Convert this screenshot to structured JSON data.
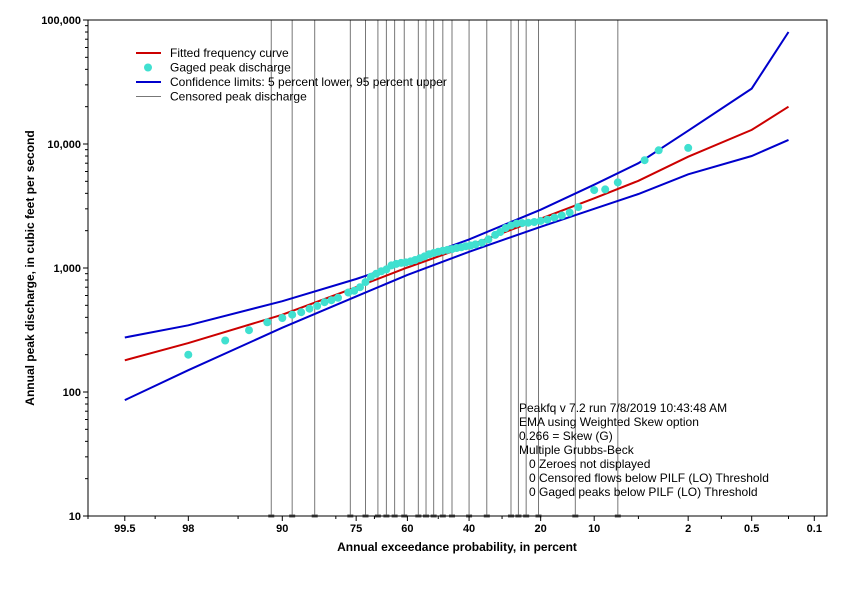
{
  "chart_data": {
    "type": "scatter",
    "title": "",
    "xlabel": "Annual exceedance probability, in percent",
    "ylabel": "Annual peak discharge, in cubic feet per second",
    "x_scale": "normal-probability",
    "y_scale": "log",
    "xlim": [
      99.8,
      0.07
    ],
    "ylim": [
      10,
      100000
    ],
    "x_ticks": [
      {
        "value": 99.5,
        "label": "99.5"
      },
      {
        "value": 98,
        "label": "98"
      },
      {
        "value": 90,
        "label": "90"
      },
      {
        "value": 75,
        "label": "75"
      },
      {
        "value": 60,
        "label": "60"
      },
      {
        "value": 40,
        "label": "40"
      },
      {
        "value": 20,
        "label": "20"
      },
      {
        "value": 10,
        "label": "10"
      },
      {
        "value": 2,
        "label": "2"
      },
      {
        "value": 0.5,
        "label": "0.5"
      },
      {
        "value": 0.1,
        "label": "0.1"
      }
    ],
    "x_minor_ticks": [
      99.8,
      99,
      95,
      80,
      70,
      50,
      30,
      5,
      1,
      0.2
    ],
    "y_ticks": [
      {
        "value": 10,
        "label": "10"
      },
      {
        "value": 100,
        "label": "100"
      },
      {
        "value": 1000,
        "label": "1,000"
      },
      {
        "value": 10000,
        "label": "10,000"
      },
      {
        "value": 100000,
        "label": "100,000"
      }
    ],
    "grid": false,
    "legend_position": "top-left",
    "series": [
      {
        "name": "Fitted frequency curve",
        "kind": "line",
        "color": "#cc0000",
        "points": [
          [
            99.5,
            180
          ],
          [
            98,
            248
          ],
          [
            90,
            420
          ],
          [
            75,
            700
          ],
          [
            60,
            1010
          ],
          [
            40,
            1520
          ],
          [
            20,
            2500
          ],
          [
            10,
            3650
          ],
          [
            5,
            5050
          ],
          [
            2,
            7900
          ],
          [
            0.5,
            13000
          ],
          [
            0.2,
            20000
          ]
        ]
      },
      {
        "name": "Confidence limits: 5 percent lower, 95 percent upper",
        "kind": "line",
        "color": "#0000cc",
        "points": [
          [
            99.5,
            275
          ],
          [
            98,
            345
          ],
          [
            90,
            540
          ],
          [
            75,
            815
          ],
          [
            60,
            1120
          ],
          [
            40,
            1700
          ],
          [
            20,
            2950
          ],
          [
            10,
            4700
          ],
          [
            5,
            7000
          ],
          [
            2,
            12800
          ],
          [
            0.5,
            28000
          ],
          [
            0.2,
            80000
          ]
        ]
      },
      {
        "name": "Confidence limits (lower)",
        "kind": "line",
        "color": "#0000cc",
        "points": [
          [
            99.5,
            86
          ],
          [
            98,
            150
          ],
          [
            90,
            330
          ],
          [
            75,
            590
          ],
          [
            60,
            880
          ],
          [
            40,
            1350
          ],
          [
            20,
            2150
          ],
          [
            10,
            3000
          ],
          [
            5,
            3950
          ],
          [
            2,
            5700
          ],
          [
            0.5,
            8000
          ],
          [
            0.2,
            10800
          ]
        ]
      },
      {
        "name": "Gaged peak discharge",
        "kind": "points",
        "color": "#40e0d0",
        "points": [
          [
            98.0,
            200
          ],
          [
            96.0,
            260
          ],
          [
            94.0,
            315
          ],
          [
            92.0,
            365
          ],
          [
            90.0,
            395
          ],
          [
            88.5,
            420
          ],
          [
            87.0,
            440
          ],
          [
            85.5,
            470
          ],
          [
            84.0,
            495
          ],
          [
            82.5,
            530
          ],
          [
            81.0,
            550
          ],
          [
            79.5,
            575
          ],
          [
            77.0,
            635
          ],
          [
            75.5,
            655
          ],
          [
            74.0,
            700
          ],
          [
            72.5,
            770
          ],
          [
            71.0,
            850
          ],
          [
            69.5,
            900
          ],
          [
            68.0,
            940
          ],
          [
            66.5,
            975
          ],
          [
            65.0,
            1050
          ],
          [
            63.5,
            1080
          ],
          [
            62.0,
            1100
          ],
          [
            60.5,
            1110
          ],
          [
            59.0,
            1130
          ],
          [
            57.5,
            1160
          ],
          [
            56.0,
            1200
          ],
          [
            54.5,
            1240
          ],
          [
            53.0,
            1290
          ],
          [
            51.5,
            1320
          ],
          [
            50.0,
            1350
          ],
          [
            48.5,
            1380
          ],
          [
            47.0,
            1400
          ],
          [
            45.5,
            1420
          ],
          [
            44.0,
            1450
          ],
          [
            42.5,
            1470
          ],
          [
            41.0,
            1500
          ],
          [
            39.5,
            1520
          ],
          [
            38.0,
            1550
          ],
          [
            36.0,
            1600
          ],
          [
            34.0,
            1700
          ],
          [
            32.0,
            1850
          ],
          [
            30.5,
            1950
          ],
          [
            29.0,
            2100
          ],
          [
            27.5,
            2200
          ],
          [
            26.0,
            2280
          ],
          [
            24.5,
            2300
          ],
          [
            23.0,
            2320
          ],
          [
            21.5,
            2350
          ],
          [
            20.0,
            2400
          ],
          [
            18.5,
            2450
          ],
          [
            17.0,
            2550
          ],
          [
            15.5,
            2650
          ],
          [
            14.0,
            2800
          ],
          [
            12.5,
            3100
          ],
          [
            10.0,
            4250
          ],
          [
            8.5,
            4300
          ],
          [
            7.0,
            4900
          ],
          [
            4.5,
            7400
          ],
          [
            3.5,
            8900
          ],
          [
            2.0,
            9300
          ]
        ]
      },
      {
        "name": "Censored peak discharge",
        "kind": "vertical-lines",
        "color": "#777777",
        "x_values": [
          91.5,
          88.5,
          84.5,
          76.5,
          72.5,
          69.0,
          66.5,
          64.0,
          61.0,
          56.5,
          54.0,
          51.5,
          48.5,
          45.5,
          40.0,
          34.5,
          27.5,
          25.5,
          23.5,
          20.5,
          13.0,
          7.0
        ]
      }
    ],
    "annotations": [
      "Peakfq v 7.2 run 7/8/2019 10:43:48 AM",
      "EMA using Weighted Skew option",
      "0.266 = Skew (G)",
      "Multiple Grubbs-Beck",
      "   0 Zeroes not displayed",
      "   0 Censored flows below PILF (LO) Threshold",
      "   0 Gaged peaks below PILF (LO) Threshold"
    ]
  },
  "legend": [
    {
      "label": "Fitted frequency curve",
      "kind": "line",
      "color": "#cc0000"
    },
    {
      "label": "Gaged peak discharge",
      "kind": "dot",
      "color": "#40e0d0"
    },
    {
      "label": "Confidence limits: 5 percent lower, 95 percent upper",
      "kind": "line",
      "color": "#0000cc"
    },
    {
      "label": "Censored peak discharge",
      "kind": "thin-line",
      "color": "#777777"
    }
  ]
}
